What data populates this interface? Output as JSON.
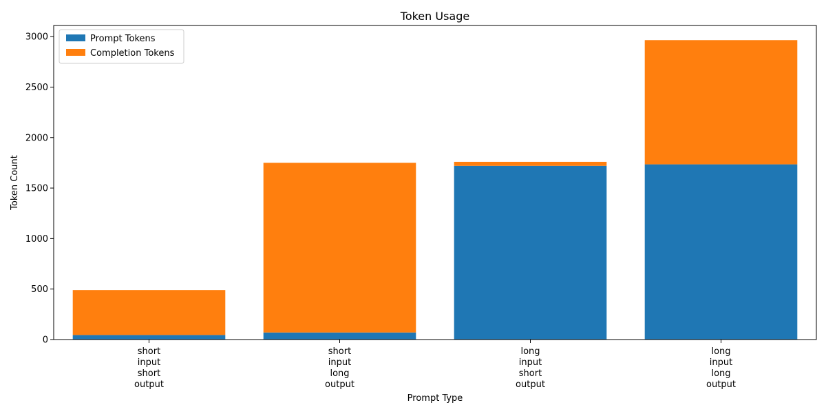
{
  "chart_data": {
    "type": "bar",
    "stacked": true,
    "title": "Token Usage",
    "xlabel": "Prompt Type",
    "ylabel": "Token Count",
    "categories": [
      [
        "short",
        "input",
        "short",
        "output"
      ],
      [
        "short",
        "input",
        "long",
        "output"
      ],
      [
        "long",
        "input",
        "short",
        "output"
      ],
      [
        "long",
        "input",
        "long",
        "output"
      ]
    ],
    "series": [
      {
        "name": "Prompt Tokens",
        "color": "#1f77b4",
        "values": [
          45,
          70,
          1720,
          1735
        ]
      },
      {
        "name": "Completion Tokens",
        "color": "#ff7f0e",
        "values": [
          445,
          1680,
          40,
          1230
        ]
      }
    ],
    "ylim": [
      0,
      3110
    ],
    "yticks": [
      0,
      500,
      1000,
      1500,
      2000,
      2500,
      3000
    ],
    "grid": false,
    "legend": "top-left"
  }
}
